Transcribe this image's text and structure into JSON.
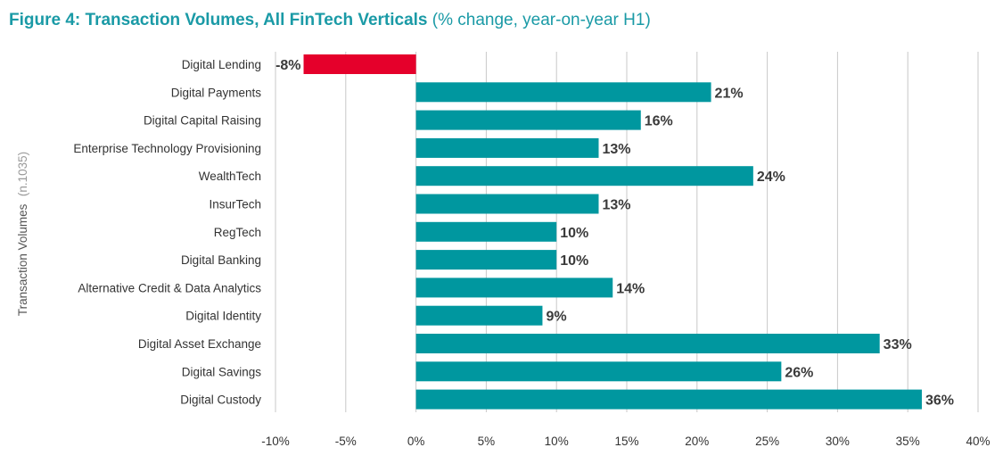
{
  "colors": {
    "title": "#1a9aa6",
    "positive_bar": "#00979f",
    "negative_bar": "#e5002b",
    "grid": "#c8c8c8"
  },
  "chart_data": {
    "type": "bar",
    "orientation": "horizontal",
    "title": "Figure 4: Transaction Volumes, All FinTech Verticals",
    "subtitle": "(% change, year-on-year H1)",
    "ylabel": "Transaction Volumes",
    "ylabel_note": "(n.1035)",
    "xlabel": "",
    "xlim": [
      -10,
      40
    ],
    "xticks": [
      -10,
      -5,
      0,
      5,
      10,
      15,
      20,
      25,
      30,
      35,
      40
    ],
    "xtick_labels": [
      "-10%",
      "-5%",
      "0%",
      "5%",
      "10%",
      "15%",
      "20%",
      "25%",
      "30%",
      "35%",
      "40%"
    ],
    "grid": "vertical",
    "legend": "none",
    "categories": [
      "Digital Lending",
      "Digital Payments",
      "Digital Capital Raising",
      "Enterprise Technology Provisioning",
      "WealthTech",
      "InsurTech",
      "RegTech",
      "Digital Banking",
      "Alternative Credit & Data Analytics",
      "Digital Identity",
      "Digital Asset Exchange",
      "Digital Savings",
      "Digital Custody"
    ],
    "values": [
      -8,
      21,
      16,
      13,
      24,
      13,
      10,
      10,
      14,
      9,
      33,
      26,
      36
    ],
    "data_labels": [
      "-8%",
      "21%",
      "16%",
      "13%",
      "24%",
      "13%",
      "10%",
      "10%",
      "14%",
      "9%",
      "33%",
      "26%",
      "36%"
    ]
  }
}
